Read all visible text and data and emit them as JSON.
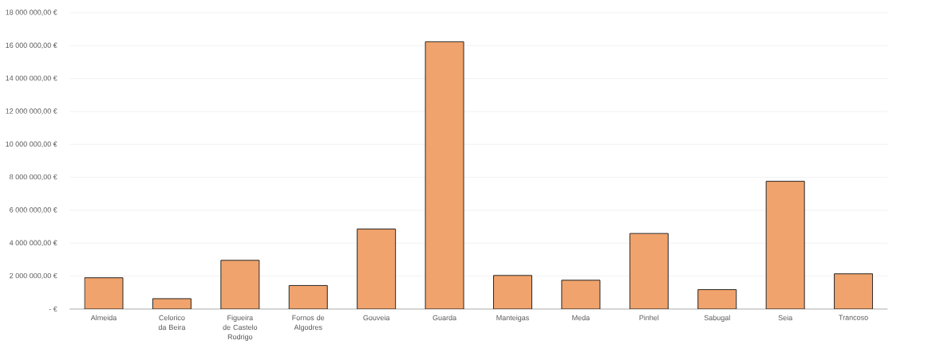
{
  "chart_data": {
    "type": "bar",
    "categories": [
      "Almeida",
      "Celorico da Beira",
      "Figueira de Castelo Rodrigo",
      "Fornos de Algodres",
      "Gouveia",
      "Guarda",
      "Manteigas",
      "Meda",
      "Pinhel",
      "Sabugal",
      "Seia",
      "Trancoso"
    ],
    "values": [
      1900000,
      630000,
      2960000,
      1430000,
      4860000,
      16240000,
      2040000,
      1750000,
      4590000,
      1180000,
      7760000,
      2140000
    ],
    "color": "#f0a36c",
    "ylim": [
      0,
      18000000
    ],
    "yticks": [
      {
        "value": 0,
        "label": "-  €"
      },
      {
        "value": 2000000,
        "label": "2 000 000,00 €"
      },
      {
        "value": 4000000,
        "label": "4 000 000,00 €"
      },
      {
        "value": 6000000,
        "label": "6 000 000,00 €"
      },
      {
        "value": 8000000,
        "label": "8 000 000,00 €"
      },
      {
        "value": 10000000,
        "label": "10 000 000,00 €"
      },
      {
        "value": 12000000,
        "label": "12 000 000,00 €"
      },
      {
        "value": 14000000,
        "label": "14 000 000,00 €"
      },
      {
        "value": 16000000,
        "label": "16 000 000,00 €"
      },
      {
        "value": 18000000,
        "label": "18 000 000,00 €"
      }
    ],
    "grid": "y"
  }
}
